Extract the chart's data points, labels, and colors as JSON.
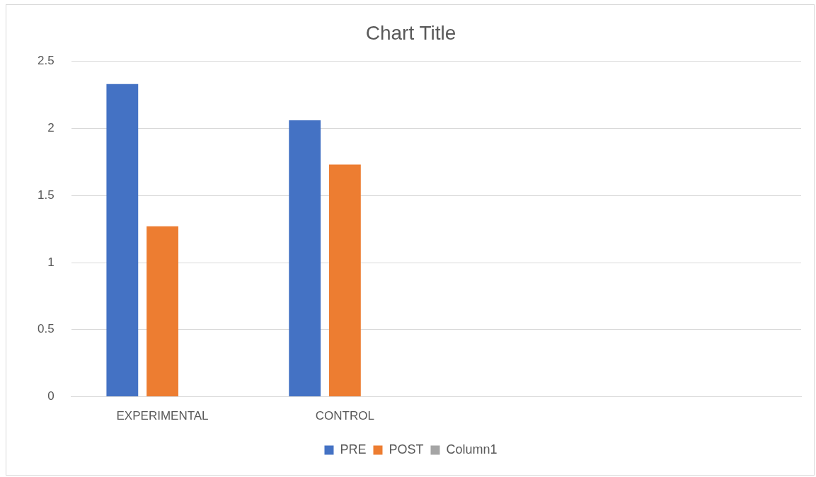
{
  "chart_data": {
    "type": "bar",
    "title": "Chart Title",
    "categories": [
      "EXPERIMENTAL",
      "CONTROL",
      null,
      null
    ],
    "series": [
      {
        "name": "PRE",
        "color": "#4472c4",
        "values": [
          2.33,
          2.06,
          null,
          null
        ]
      },
      {
        "name": "POST",
        "color": "#ed7d31",
        "values": [
          1.27,
          1.73,
          null,
          null
        ]
      },
      {
        "name": "Column1",
        "color": "#a5a5a5",
        "values": [
          null,
          null,
          null,
          null
        ]
      }
    ],
    "ylim": [
      0,
      2.5
    ],
    "yticks": [
      0,
      0.5,
      1,
      1.5,
      2,
      2.5
    ],
    "grid": "y",
    "legend": "bottom"
  }
}
